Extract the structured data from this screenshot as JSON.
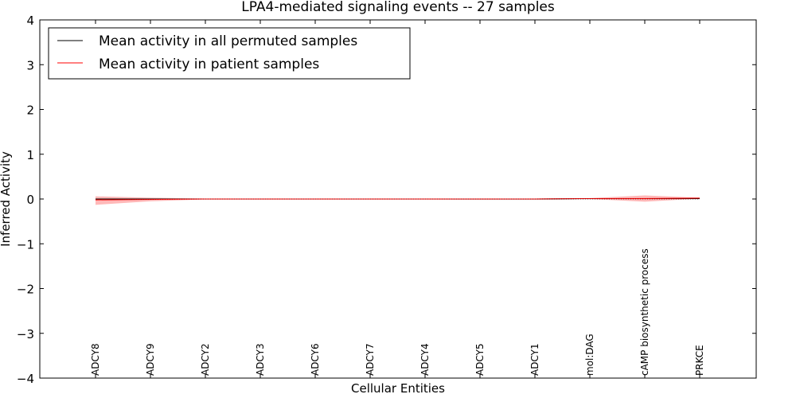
{
  "chart_data": {
    "type": "line",
    "title": "LPA4-mediated signaling events -- 27 samples",
    "xlabel": "Cellular Entities",
    "ylabel": "Inferred Activity",
    "ylim": [
      -4,
      4
    ],
    "yticks": [
      -4,
      -3,
      -2,
      -1,
      0,
      1,
      2,
      3,
      4
    ],
    "ytick_labels": [
      "−4",
      "−3",
      "−2",
      "−1",
      "0",
      "1",
      "2",
      "3",
      "4"
    ],
    "grid": false,
    "legend_position": "top-left",
    "categories": [
      "ADCY8",
      "ADCY9",
      "ADCY2",
      "ADCY3",
      "ADCY6",
      "ADCY7",
      "ADCY4",
      "ADCY5",
      "ADCY1",
      "mol:DAG",
      "cAMP biosynthetic process",
      "PRKCE"
    ],
    "series": [
      {
        "name": "Mean activity in all permuted samples",
        "color": "#000000",
        "values": [
          0,
          0,
          0,
          0,
          0,
          0,
          0,
          0,
          0,
          0.01,
          0.01,
          0.01
        ],
        "band_lower": [
          -0.02,
          -0.02,
          -0.01,
          -0.01,
          -0.01,
          -0.01,
          -0.01,
          -0.02,
          -0.02,
          -0.01,
          -0.02,
          -0.01
        ],
        "band_upper": [
          0.01,
          0.01,
          0.01,
          0.01,
          0.01,
          0.01,
          0.01,
          0.01,
          0.01,
          0.02,
          0.03,
          0.02
        ],
        "band_color": "#bbbbbb"
      },
      {
        "name": "Mean activity in patient samples",
        "color": "#ff0000",
        "values": [
          -0.02,
          -0.01,
          0,
          0,
          0,
          0,
          0,
          0,
          0,
          0.01,
          0.01,
          0.02
        ],
        "band_lower": [
          -0.13,
          -0.05,
          -0.01,
          -0.01,
          -0.01,
          -0.01,
          -0.01,
          -0.01,
          -0.01,
          0,
          -0.06,
          0.01
        ],
        "band_upper": [
          0.06,
          0.03,
          0.01,
          0.01,
          0.01,
          0.01,
          0.01,
          0.01,
          0.01,
          0.02,
          0.08,
          0.03
        ],
        "band_color": "#ff8080"
      }
    ]
  }
}
